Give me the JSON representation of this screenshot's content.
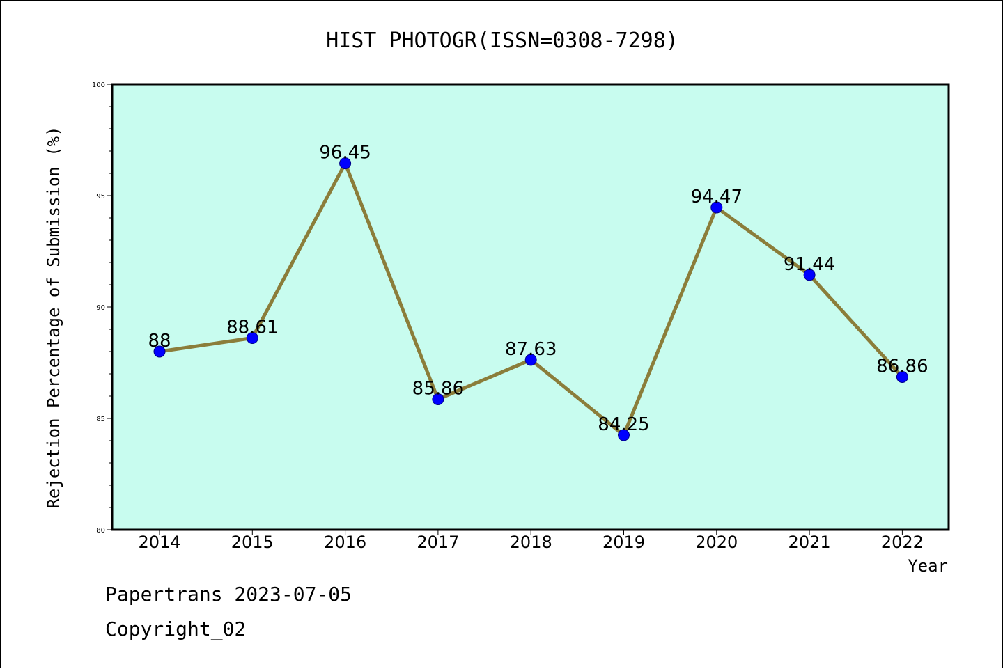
{
  "chart_data": {
    "type": "line",
    "title": "HIST PHOTOGR(ISSN=0308-7298)",
    "xlabel": "Year",
    "ylabel": "Rejection Percentage of Submission (%)",
    "categories": [
      "2014",
      "2015",
      "2016",
      "2017",
      "2018",
      "2019",
      "2020",
      "2021",
      "2022"
    ],
    "series": [
      {
        "values": [
          88,
          88.61,
          96.45,
          85.86,
          87.63,
          84.25,
          94.47,
          91.44,
          86.86
        ],
        "labels": [
          "88",
          "88.61",
          "96.45",
          "85.86",
          "87.63",
          "84.25",
          "94.47",
          "91.44",
          "86.86"
        ]
      }
    ],
    "ylim": [
      80,
      100
    ],
    "yticks": [
      80,
      85,
      90,
      95,
      100
    ],
    "grid": false,
    "colors": {
      "plot_background": "#c8fcef",
      "line": "#8b7d3a",
      "marker": "#0000ff",
      "marker_edge": "#00008b"
    }
  },
  "footer": {
    "line1": "Papertrans 2023-07-05",
    "line2": "Copyright_02"
  }
}
